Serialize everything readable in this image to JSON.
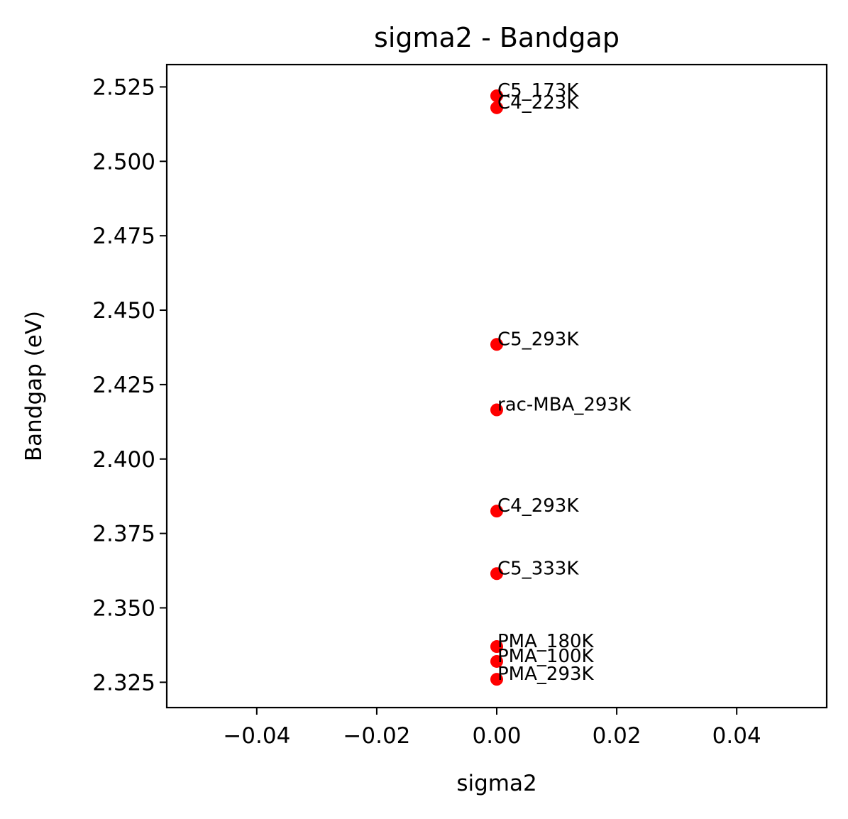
{
  "chart_data": {
    "type": "scatter",
    "title": "sigma2 - Bandgap",
    "xlabel": "sigma2",
    "ylabel": "Bandgap (eV)",
    "xlim": [
      -0.055,
      0.055
    ],
    "ylim": [
      2.3165,
      2.5325
    ],
    "grid": false,
    "marker_color": "#ff0000",
    "x_ticks": [
      {
        "value": -0.04,
        "label": "−0.04"
      },
      {
        "value": -0.02,
        "label": "−0.02"
      },
      {
        "value": 0.0,
        "label": "0.00"
      },
      {
        "value": 0.02,
        "label": "0.02"
      },
      {
        "value": 0.04,
        "label": "0.04"
      }
    ],
    "y_ticks": [
      {
        "value": 2.325,
        "label": "2.325"
      },
      {
        "value": 2.35,
        "label": "2.350"
      },
      {
        "value": 2.375,
        "label": "2.375"
      },
      {
        "value": 2.4,
        "label": "2.400"
      },
      {
        "value": 2.425,
        "label": "2.425"
      },
      {
        "value": 2.45,
        "label": "2.450"
      },
      {
        "value": 2.475,
        "label": "2.475"
      },
      {
        "value": 2.5,
        "label": "2.500"
      },
      {
        "value": 2.525,
        "label": "2.525"
      }
    ],
    "points": [
      {
        "label": "C5_173K",
        "x": 0.0,
        "y": 2.522
      },
      {
        "label": "C4_223K",
        "x": 0.0,
        "y": 2.518
      },
      {
        "label": "C5_293K",
        "x": 0.0,
        "y": 2.4385
      },
      {
        "label": "rac-MBA_293K",
        "x": 0.0,
        "y": 2.4165
      },
      {
        "label": "C4_293K",
        "x": 0.0,
        "y": 2.3825
      },
      {
        "label": "C5_333K",
        "x": 0.0,
        "y": 2.3615
      },
      {
        "label": "PMA_180K",
        "x": 0.0,
        "y": 2.337
      },
      {
        "label": "PMA_100K",
        "x": 0.0,
        "y": 2.332
      },
      {
        "label": "PMA_293K",
        "x": 0.0,
        "y": 2.326
      }
    ]
  }
}
